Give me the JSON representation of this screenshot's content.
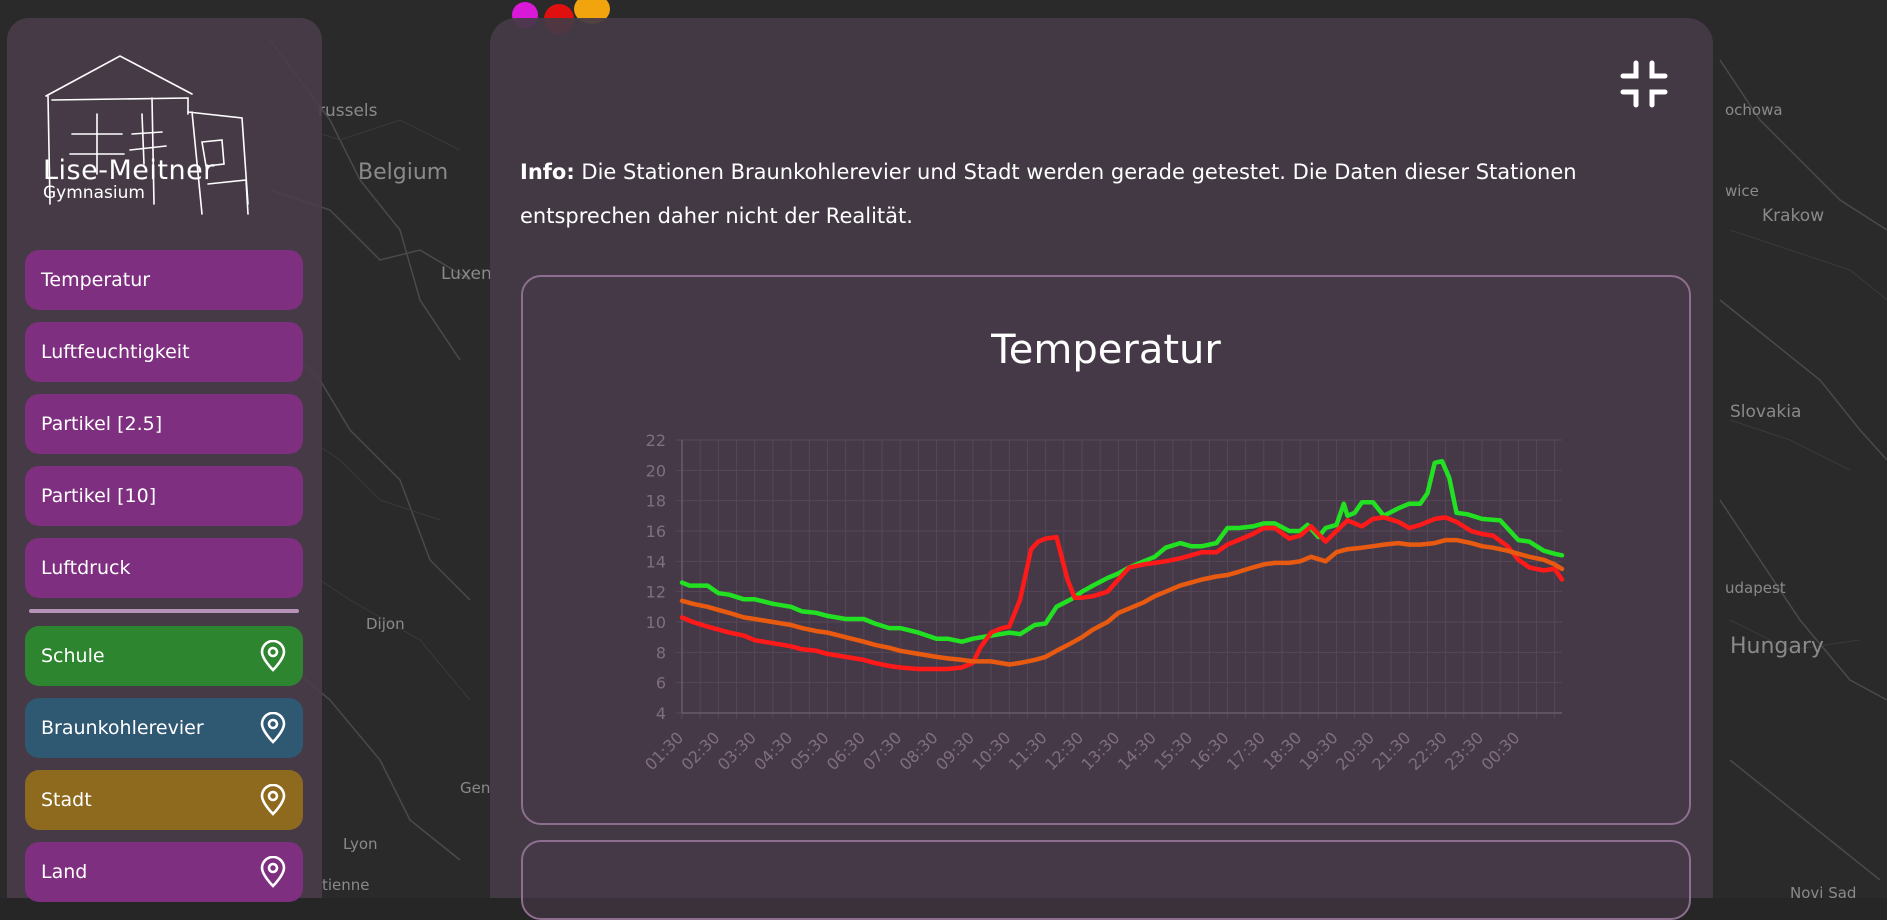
{
  "map": {
    "labels": [
      "russels",
      "Belgium",
      "Luxen",
      "Dijon",
      "Gen",
      "Lyon",
      "tienne",
      "ochowa",
      "wice",
      "Krakow",
      "Slovakia",
      "udapest",
      "Hungary",
      "Novi Sad"
    ]
  },
  "sidebar": {
    "logo": {
      "title": "Lise-Meitner",
      "subtitle": "Gymnasium"
    },
    "measures": [
      {
        "label": "Temperatur"
      },
      {
        "label": "Luftfeuchtigkeit"
      },
      {
        "label": "Partikel [2.5]"
      },
      {
        "label": "Partikel [10]"
      },
      {
        "label": "Luftdruck"
      }
    ],
    "stations": [
      {
        "label": "Schule",
        "color": "#2e8530",
        "icon": "location-pin-icon"
      },
      {
        "label": "Braunkohlerevier",
        "color": "#2f5872",
        "icon": "location-pin-icon"
      },
      {
        "label": "Stadt",
        "color": "#8e6a1f",
        "icon": "location-pin-icon"
      },
      {
        "label": "Land",
        "color": "#7e2f80",
        "icon": "location-pin-icon"
      }
    ]
  },
  "panel": {
    "info_label": "Info:",
    "info_text": " Die Stationen Braunkohlerevier und Stadt werden gerade getestet. Die Daten dieser Stationen entsprechen daher nicht der Realität.",
    "collapse_icon": "collapse-icon"
  },
  "colors": {
    "accent": "#7e2f80",
    "panel": "#443a46"
  },
  "chart_data": {
    "type": "line",
    "title": "Temperatur",
    "xlabel": "",
    "ylabel": "",
    "ylim": [
      4,
      22
    ],
    "yticks": [
      4,
      6,
      8,
      10,
      12,
      14,
      16,
      18,
      20,
      22
    ],
    "categories": [
      "01:30",
      "02:30",
      "03:30",
      "04:30",
      "05:30",
      "06:30",
      "07:30",
      "08:30",
      "09:30",
      "10:30",
      "11:30",
      "12:30",
      "13:30",
      "14:30",
      "15:30",
      "16:30",
      "17:30",
      "18:30",
      "19:30",
      "20:30",
      "21:30",
      "22:30",
      "23:30",
      "00:30"
    ],
    "x_end": 24.2,
    "grid": true,
    "series": [
      {
        "color": "#22e022",
        "x": [
          0,
          0.2,
          0.7,
          1.0,
          1.3,
          1.7,
          2.0,
          2.5,
          3.0,
          3.3,
          3.7,
          4.0,
          4.5,
          5.0,
          5.3,
          5.7,
          6.0,
          6.5,
          7.0,
          7.3,
          7.7,
          8.0,
          8.5,
          9.0,
          9.3,
          9.7,
          10.0,
          10.3,
          10.7,
          11.0,
          11.3,
          11.7,
          12.0,
          12.3,
          12.7,
          13.0,
          13.3,
          13.7,
          14.0,
          14.3,
          14.7,
          15.0,
          15.3,
          15.7,
          16.0,
          16.3,
          16.7,
          17.0,
          17.2,
          17.5,
          17.7,
          18.0,
          18.2,
          18.3,
          18.5,
          18.7,
          19.0,
          19.3,
          19.7,
          20.0,
          20.3,
          20.5,
          20.7,
          20.9,
          21.1,
          21.3,
          21.6,
          22.0,
          22.5,
          23.0,
          23.3,
          23.7,
          24.0,
          24.2
        ],
        "y": [
          12.6,
          12.4,
          12.4,
          11.9,
          11.8,
          11.5,
          11.5,
          11.2,
          11.0,
          10.7,
          10.6,
          10.4,
          10.2,
          10.2,
          9.9,
          9.6,
          9.6,
          9.3,
          8.9,
          8.9,
          8.7,
          8.9,
          9.1,
          9.3,
          9.2,
          9.8,
          9.9,
          11.0,
          11.5,
          12.0,
          12.4,
          12.9,
          13.2,
          13.6,
          14.0,
          14.3,
          14.9,
          15.2,
          15.0,
          15.0,
          15.2,
          16.2,
          16.2,
          16.3,
          16.5,
          16.5,
          16.0,
          16.0,
          16.4,
          15.6,
          16.2,
          16.4,
          17.8,
          17.0,
          17.2,
          17.9,
          17.9,
          17.0,
          17.5,
          17.8,
          17.8,
          18.5,
          20.5,
          20.6,
          19.5,
          17.2,
          17.1,
          16.8,
          16.7,
          15.4,
          15.3,
          14.7,
          14.5,
          14.4
        ]
      },
      {
        "color": "#ff1a1a",
        "x": [
          0,
          0.3,
          0.7,
          1.0,
          1.3,
          1.7,
          2.0,
          2.5,
          3.0,
          3.3,
          3.7,
          4.0,
          4.5,
          5.0,
          5.3,
          5.7,
          6.0,
          6.5,
          7.0,
          7.3,
          7.7,
          8.0,
          8.2,
          8.5,
          8.8,
          9.0,
          9.3,
          9.6,
          9.8,
          10.0,
          10.3,
          10.6,
          10.8,
          11.0,
          11.3,
          11.7,
          12.0,
          12.3,
          12.7,
          13.0,
          13.3,
          13.7,
          14.0,
          14.3,
          14.7,
          15.0,
          15.3,
          15.7,
          16.0,
          16.3,
          16.7,
          17.0,
          17.3,
          17.7,
          18.0,
          18.3,
          18.7,
          19.0,
          19.3,
          19.7,
          20.0,
          20.3,
          20.7,
          21.0,
          21.3,
          21.7,
          22.0,
          22.3,
          22.7,
          23.0,
          23.3,
          23.7,
          24.0,
          24.2
        ],
        "y": [
          10.3,
          10.0,
          9.7,
          9.5,
          9.3,
          9.1,
          8.8,
          8.6,
          8.4,
          8.2,
          8.1,
          7.9,
          7.7,
          7.5,
          7.3,
          7.1,
          7.0,
          6.9,
          6.9,
          6.9,
          7.0,
          7.3,
          8.3,
          9.3,
          9.6,
          9.7,
          11.5,
          14.8,
          15.3,
          15.5,
          15.6,
          12.8,
          11.6,
          11.6,
          11.7,
          12.0,
          12.8,
          13.6,
          13.8,
          13.9,
          14.0,
          14.2,
          14.4,
          14.6,
          14.6,
          15.1,
          15.4,
          15.8,
          16.2,
          16.2,
          15.5,
          15.7,
          16.3,
          15.3,
          16.0,
          16.7,
          16.3,
          16.8,
          16.9,
          16.6,
          16.2,
          16.4,
          16.8,
          16.9,
          16.6,
          16.0,
          15.8,
          15.7,
          15.0,
          14.1,
          13.6,
          13.4,
          13.5,
          12.8
        ]
      },
      {
        "color": "#e85a10",
        "x": [
          0,
          0.3,
          0.7,
          1.0,
          1.3,
          1.7,
          2.0,
          2.5,
          3.0,
          3.3,
          3.7,
          4.0,
          4.5,
          5.0,
          5.3,
          5.7,
          6.0,
          6.5,
          7.0,
          7.3,
          7.7,
          8.0,
          8.5,
          9.0,
          9.3,
          9.7,
          10.0,
          10.3,
          10.7,
          11.0,
          11.3,
          11.7,
          12.0,
          12.3,
          12.7,
          13.0,
          13.3,
          13.7,
          14.0,
          14.3,
          14.7,
          15.0,
          15.3,
          15.7,
          16.0,
          16.3,
          16.7,
          17.0,
          17.3,
          17.7,
          18.0,
          18.3,
          18.7,
          19.0,
          19.3,
          19.7,
          20.0,
          20.3,
          20.7,
          21.0,
          21.3,
          21.7,
          22.0,
          22.3,
          22.7,
          23.0,
          23.3,
          23.7,
          24.0,
          24.2
        ],
        "y": [
          11.4,
          11.2,
          11.0,
          10.8,
          10.6,
          10.3,
          10.2,
          10.0,
          9.8,
          9.6,
          9.4,
          9.3,
          9.0,
          8.7,
          8.5,
          8.3,
          8.1,
          7.9,
          7.7,
          7.6,
          7.5,
          7.4,
          7.4,
          7.2,
          7.3,
          7.5,
          7.7,
          8.1,
          8.6,
          9.0,
          9.5,
          10.0,
          10.6,
          10.9,
          11.3,
          11.7,
          12.0,
          12.4,
          12.6,
          12.8,
          13.0,
          13.1,
          13.3,
          13.6,
          13.8,
          13.9,
          13.9,
          14.0,
          14.3,
          14.0,
          14.6,
          14.8,
          14.9,
          15.0,
          15.1,
          15.2,
          15.1,
          15.1,
          15.2,
          15.4,
          15.4,
          15.2,
          15.0,
          14.9,
          14.7,
          14.5,
          14.3,
          14.1,
          13.8,
          13.5
        ]
      }
    ]
  }
}
